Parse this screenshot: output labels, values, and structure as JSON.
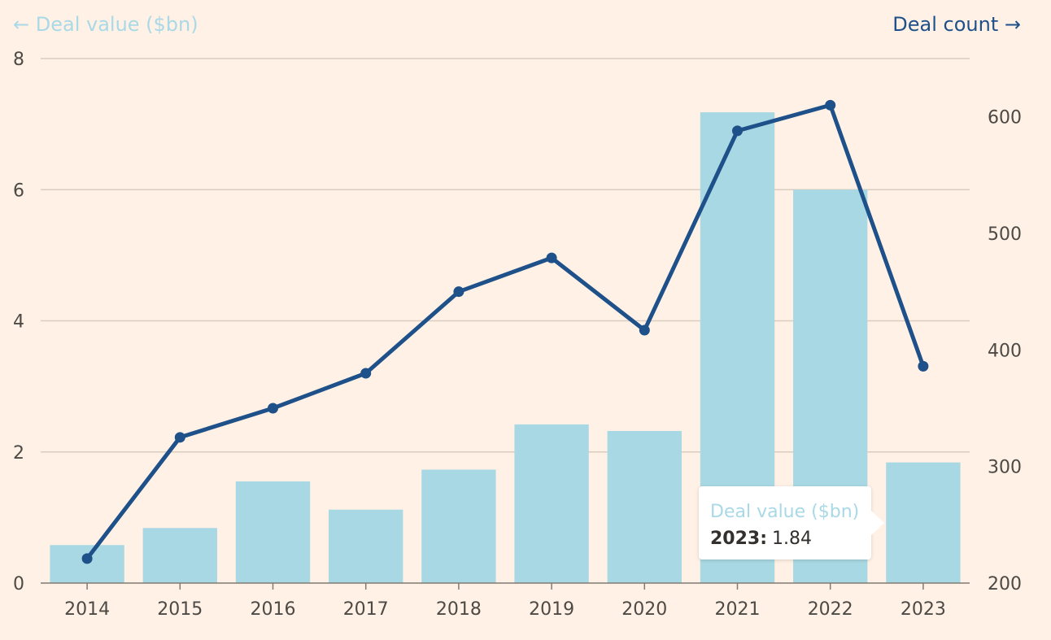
{
  "chart_data": {
    "type": "bar+line",
    "categories": [
      "2014",
      "2015",
      "2016",
      "2017",
      "2018",
      "2019",
      "2020",
      "2021",
      "2022",
      "2023"
    ],
    "series": [
      {
        "name": "Deal value ($bn)",
        "type": "bar",
        "axis": "left",
        "color": "#a8d8e3",
        "values": [
          0.58,
          0.84,
          1.55,
          1.12,
          1.73,
          2.42,
          2.32,
          7.18,
          6.0,
          1.84
        ]
      },
      {
        "name": "Deal count",
        "type": "line",
        "axis": "right",
        "color": "#1e5089",
        "values": [
          221,
          325,
          350,
          380,
          450,
          479,
          417,
          588,
          610,
          386
        ]
      }
    ],
    "left_axis": {
      "label": "← Deal value ($bn)",
      "ylim": [
        0,
        8
      ],
      "ticks": [
        0,
        2,
        4,
        6,
        8
      ]
    },
    "right_axis": {
      "label": "Deal count →",
      "ylim": [
        200,
        650
      ],
      "ticks": [
        200,
        300,
        400,
        500,
        600
      ]
    },
    "grid": true
  },
  "tooltip": {
    "series": "Deal value ($bn)",
    "key": "2023:",
    "value": "1.84"
  }
}
